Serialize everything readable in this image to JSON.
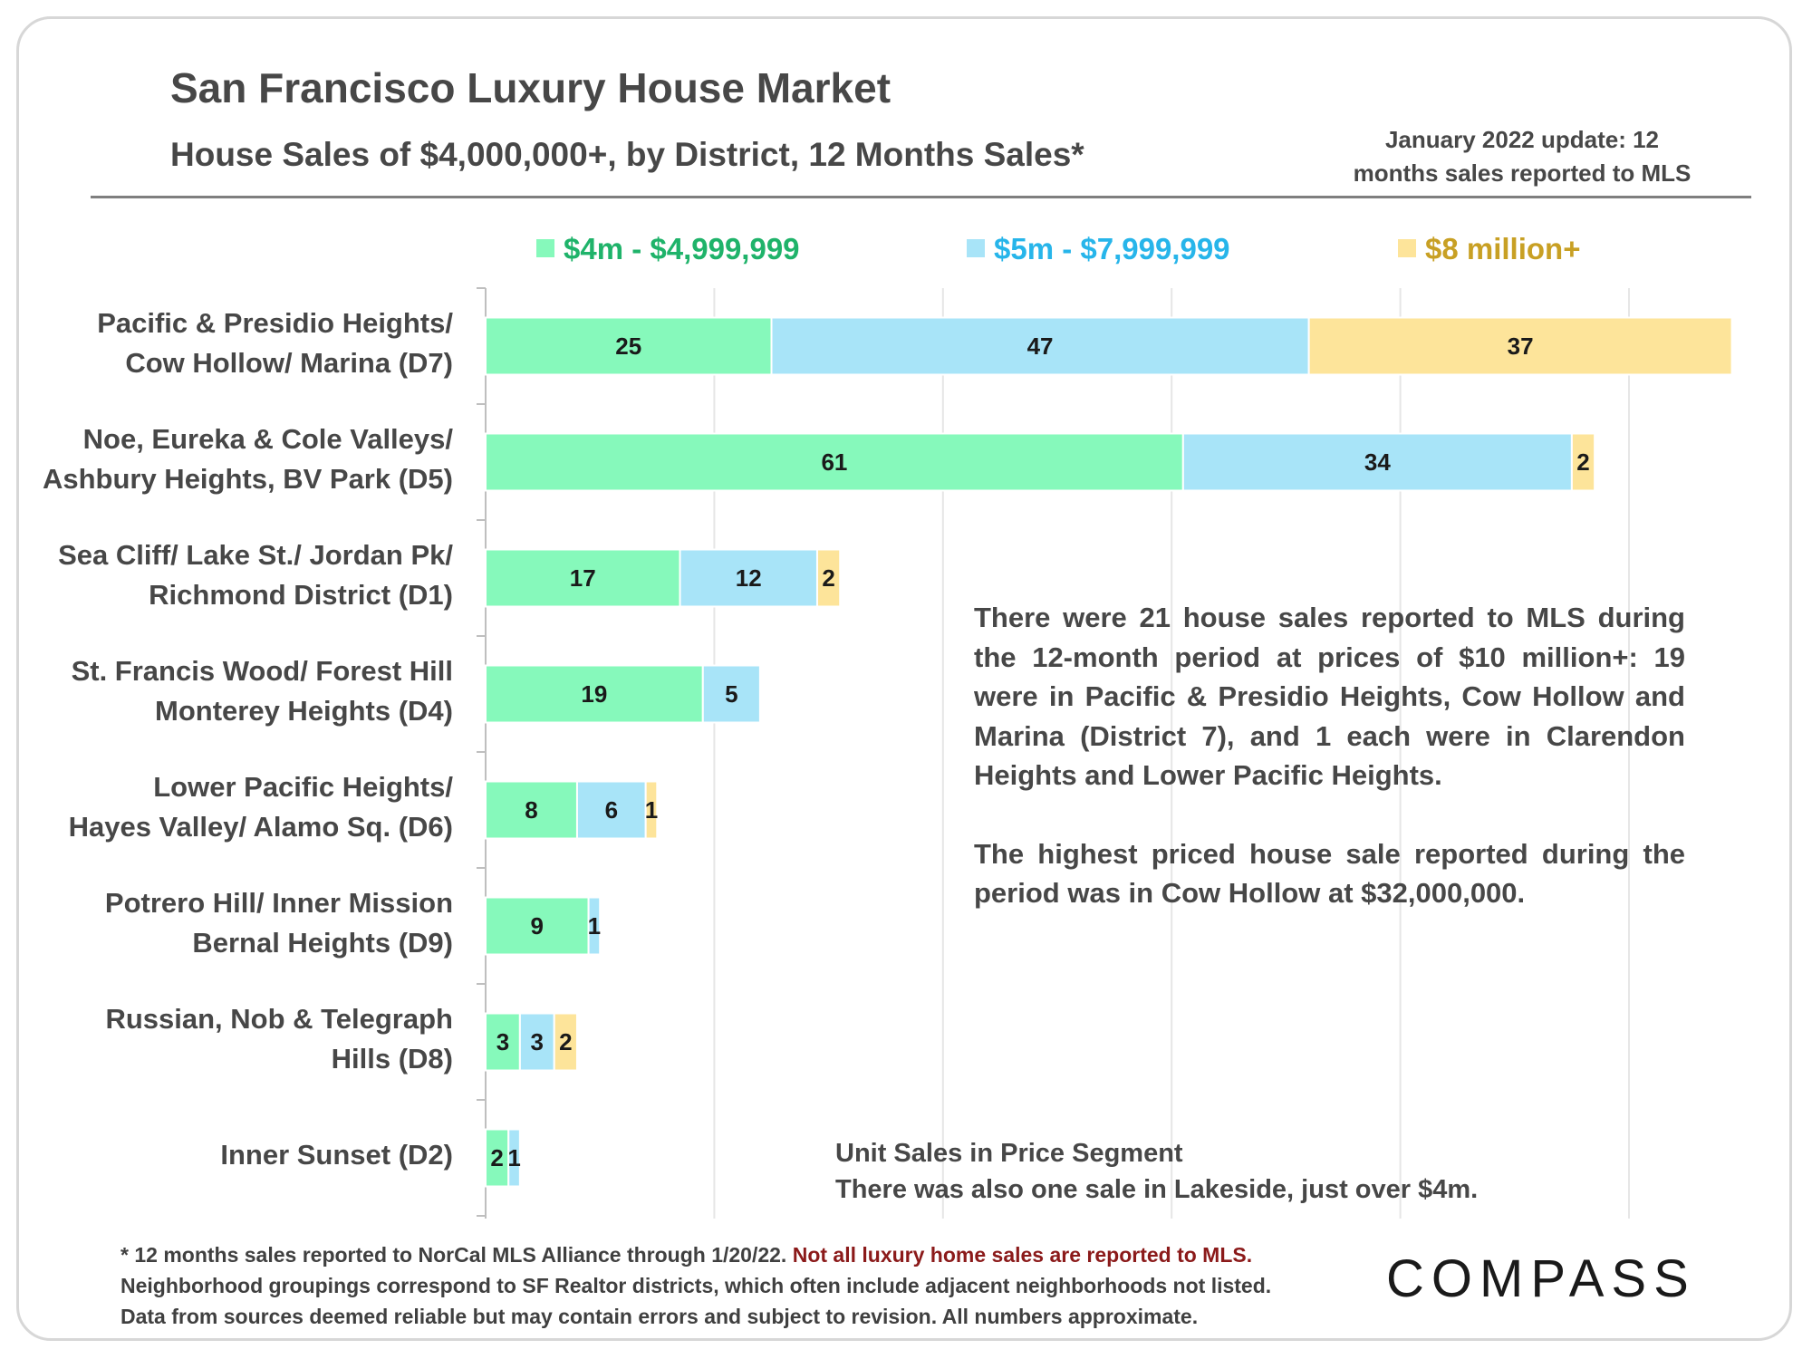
{
  "header": {
    "title": "San Francisco Luxury House Market",
    "subtitle": "House Sales of $4,000,000+, by District, 12 Months Sales*",
    "update_line1": "January 2022 update: 12",
    "update_line2": "months sales reported to MLS"
  },
  "colors": {
    "seg1": "#86f9bb",
    "seg2": "#a8e4f8",
    "seg3": "#fde49a",
    "legend1_text": "#1fb36a",
    "legend2_text": "#27b5ea",
    "legend3_text": "#c8a024",
    "gridline": "#e6e6e6"
  },
  "chart_data": {
    "type": "bar",
    "orientation": "horizontal",
    "stacked": true,
    "categories": [
      [
        "Pacific & Presidio Heights/",
        "Cow Hollow/ Marina (D7)"
      ],
      [
        "Noe, Eureka & Cole Valleys/",
        "Ashbury Heights, BV Park (D5)"
      ],
      [
        "Sea Cliff/ Lake St./ Jordan Pk/",
        "Richmond District (D1)"
      ],
      [
        "St. Francis Wood/ Forest Hill",
        "Monterey Heights (D4)"
      ],
      [
        "Lower Pacific Heights/",
        "Hayes Valley/ Alamo Sq. (D6)"
      ],
      [
        "Potrero Hill/ Inner Mission",
        "Bernal Heights (D9)"
      ],
      [
        "Russian, Nob & Telegraph",
        "Hills (D8)"
      ],
      [
        "Inner Sunset (D2)"
      ]
    ],
    "series": [
      {
        "name": "$4m - $4,999,999",
        "values": [
          25,
          61,
          17,
          19,
          8,
          9,
          3,
          2
        ]
      },
      {
        "name": "$5m - $7,999,999",
        "values": [
          47,
          34,
          12,
          5,
          6,
          1,
          3,
          1
        ]
      },
      {
        "name": "$8 million+",
        "values": [
          37,
          2,
          2,
          0,
          1,
          0,
          2,
          0
        ]
      }
    ],
    "xlim": [
      0,
      110
    ],
    "grid": true,
    "legend_position": "top",
    "data_labels": true
  },
  "annotations": {
    "note_p1": "There were 21 house sales reported to MLS during the 12-month period at prices of $10 million+:  19 were in Pacific & Presidio Heights, Cow Hollow and Marina (District 7), and 1 each were in Clarendon Heights and Lower Pacific Heights.",
    "note_p2": "The highest priced house sale reported during the period was in Cow Hollow at $32,000,000.",
    "unit_caption1": "Unit Sales in Price Segment",
    "unit_caption2": "There was also one sale in Lakeside, just over $4m."
  },
  "footnote": {
    "line1_a": "* 12 months sales reported to NorCal MLS Alliance through 1/20/22. ",
    "line1_b": "Not all luxury home sales are reported to MLS.",
    "line2": "Neighborhood groupings correspond to SF Realtor districts, which often include adjacent neighborhoods not listed.",
    "line3": "Data from sources deemed reliable but may contain errors and subject to revision. All numbers approximate."
  },
  "brand": {
    "logo": "COMPASS"
  }
}
